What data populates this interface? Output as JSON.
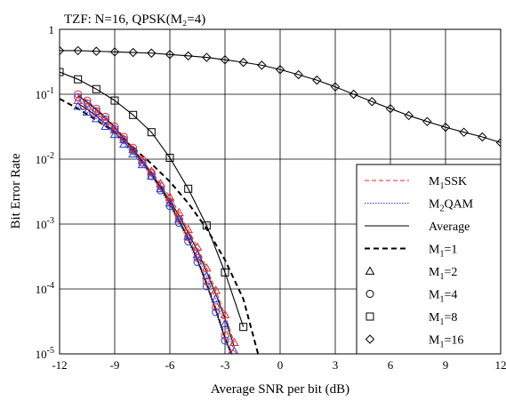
{
  "chart_data": {
    "type": "line",
    "title": "TZF: N=16, QPSK(M₂=4)",
    "xlabel": "Average SNR per bit (dB)",
    "ylabel": "Bit Error Rate",
    "xlim": [
      -12,
      12
    ],
    "ylim": [
      1e-05,
      1
    ],
    "y_scale": "log",
    "grid": true,
    "legend_position": "bottom-right",
    "x_ticks": [
      "-12",
      "-9",
      "-6",
      "-3",
      "0",
      "3",
      "6",
      "9",
      "12"
    ],
    "y_ticks": [
      {
        "base": "10",
        "exp": "-5"
      },
      {
        "base": "10",
        "exp": "-4"
      },
      {
        "base": "10",
        "exp": "-3"
      },
      {
        "base": "10",
        "exp": "-2"
      },
      {
        "base": "10",
        "exp": "-1"
      },
      {
        "base": "1",
        "exp": ""
      }
    ],
    "legend": [
      {
        "label": "M₁SSK",
        "style": "red-dashed"
      },
      {
        "label": "M₂QAM",
        "style": "blue-dotted"
      },
      {
        "label": "Average",
        "style": "black-solid"
      },
      {
        "label": "M₁=1",
        "style": "black-dashed"
      },
      {
        "label": "M₁=2",
        "marker": "triangle"
      },
      {
        "label": "M₁=4",
        "marker": "circle"
      },
      {
        "label": "M₁=8",
        "marker": "square"
      },
      {
        "label": "M₁=16",
        "marker": "diamond"
      }
    ],
    "series": [
      {
        "group": "M₁=1",
        "line": "black-dashed",
        "marker": "none",
        "x": [
          -12,
          -11,
          -10,
          -9,
          -8,
          -7,
          -6,
          -5,
          -4,
          -3,
          -2,
          -1.2
        ],
        "y": [
          0.085,
          0.06,
          0.04,
          0.026,
          0.015,
          0.0085,
          0.0045,
          0.0021,
          0.00085,
          0.00028,
          7e-05,
          1e-05
        ]
      },
      {
        "group": "M₁=2",
        "line": "red-dashed",
        "marker": "triangle",
        "x": [
          -11,
          -10.5,
          -10,
          -9.5,
          -9,
          -8.5,
          -8,
          -7.5,
          -7,
          -6.5,
          -6,
          -5.5,
          -5,
          -4.5,
          -4,
          -3.5,
          -3,
          -2.5
        ],
        "y": [
          0.08,
          0.065,
          0.05,
          0.038,
          0.028,
          0.02,
          0.014,
          0.0095,
          0.0065,
          0.0042,
          0.0026,
          0.0015,
          0.00082,
          0.00044,
          0.00021,
          9.5e-05,
          4e-05,
          1.5e-05
        ]
      },
      {
        "group": "M₁=2",
        "line": "blue-dotted",
        "marker": "triangle",
        "x": [
          -11,
          -10.5,
          -10,
          -9.5,
          -9,
          -8.5,
          -8,
          -7.5,
          -7,
          -6.5,
          -6,
          -5.5,
          -5,
          -4.5,
          -4,
          -3.5,
          -3,
          -2.5
        ],
        "y": [
          0.065,
          0.053,
          0.042,
          0.032,
          0.024,
          0.017,
          0.012,
          0.0082,
          0.0055,
          0.0035,
          0.0021,
          0.0012,
          0.00065,
          0.00034,
          0.00016,
          7e-05,
          2.9e-05,
          1.1e-05
        ]
      },
      {
        "group": "M₁=2",
        "line": "black-solid",
        "marker": "none",
        "x": [
          -11,
          -10.5,
          -10,
          -9.5,
          -9,
          -8.5,
          -8,
          -7.5,
          -7,
          -6.5,
          -6,
          -5.5,
          -5,
          -4.5,
          -4,
          -3.5,
          -3,
          -2.5
        ],
        "y": [
          0.072,
          0.059,
          0.046,
          0.035,
          0.026,
          0.0185,
          0.013,
          0.0088,
          0.006,
          0.0038,
          0.0023,
          0.00135,
          0.00073,
          0.00039,
          0.000185,
          8.3e-05,
          3.5e-05,
          1.3e-05
        ]
      },
      {
        "group": "M₁=4",
        "line": "red-dashed",
        "marker": "circle",
        "x": [
          -11,
          -10.5,
          -10,
          -9.5,
          -9,
          -8.5,
          -8,
          -7.5,
          -7,
          -6.5,
          -6,
          -5.5,
          -5,
          -4.5,
          -4,
          -3.5,
          -3,
          -2.6
        ],
        "y": [
          0.1,
          0.08,
          0.06,
          0.045,
          0.032,
          0.022,
          0.015,
          0.0098,
          0.0062,
          0.0038,
          0.0022,
          0.0012,
          0.00063,
          0.0003,
          0.00013,
          5.2e-05,
          1.9e-05,
          1e-05
        ]
      },
      {
        "group": "M₁=4",
        "line": "blue-dotted",
        "marker": "circle",
        "x": [
          -11,
          -10.5,
          -10,
          -9.5,
          -9,
          -8.5,
          -8,
          -7.5,
          -7,
          -6.5,
          -6,
          -5.5,
          -5,
          -4.5,
          -4,
          -3.5,
          -3,
          -2.6
        ],
        "y": [
          0.09,
          0.072,
          0.055,
          0.041,
          0.029,
          0.02,
          0.0135,
          0.0088,
          0.0055,
          0.0033,
          0.0019,
          0.00104,
          0.00054,
          0.00026,
          0.00011,
          4.4e-05,
          1.6e-05,
          8.5e-06
        ]
      },
      {
        "group": "M₁=4",
        "line": "black-solid",
        "marker": "none",
        "x": [
          -11,
          -10.5,
          -10,
          -9.5,
          -9,
          -8.5,
          -8,
          -7.5,
          -7,
          -6.5,
          -6,
          -5.5,
          -5,
          -4.5,
          -4,
          -3.5,
          -3,
          -2.6
        ],
        "y": [
          0.095,
          0.076,
          0.058,
          0.043,
          0.031,
          0.021,
          0.0143,
          0.0093,
          0.0059,
          0.0036,
          0.00205,
          0.00112,
          0.00059,
          0.00028,
          0.00012,
          4.8e-05,
          1.75e-05,
          9.3e-06
        ]
      },
      {
        "group": "M₁=8",
        "line": "black-solid",
        "marker": "square",
        "x": [
          -12,
          -11,
          -10,
          -9,
          -8,
          -7,
          -6,
          -5,
          -4,
          -3,
          -2
        ],
        "y": [
          0.22,
          0.17,
          0.12,
          0.08,
          0.048,
          0.026,
          0.0105,
          0.0035,
          0.00095,
          0.00018,
          2.6e-05
        ]
      },
      {
        "group": "M₁=16",
        "line": "black-solid",
        "marker": "diamond",
        "x": [
          -12,
          -11,
          -10,
          -9,
          -8,
          -7,
          -6,
          -5,
          -4,
          -3,
          -2,
          -1,
          0,
          1,
          2,
          3,
          4,
          5,
          6,
          7,
          8,
          9,
          10,
          11,
          12
        ],
        "y": [
          0.47,
          0.47,
          0.46,
          0.45,
          0.44,
          0.43,
          0.41,
          0.39,
          0.37,
          0.34,
          0.31,
          0.28,
          0.24,
          0.2,
          0.165,
          0.13,
          0.1,
          0.077,
          0.06,
          0.047,
          0.038,
          0.031,
          0.026,
          0.022,
          0.018
        ]
      }
    ]
  }
}
